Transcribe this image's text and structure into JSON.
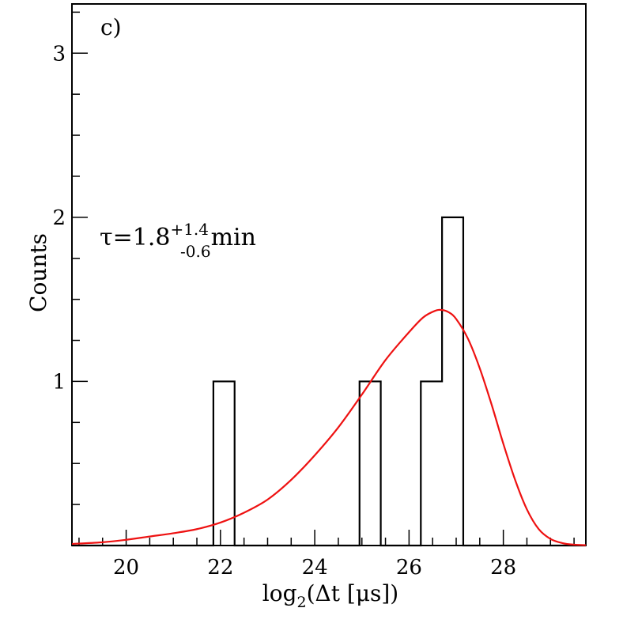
{
  "chart_data": {
    "type": "histogram",
    "panel_label": "c)",
    "xlabel": {
      "prefix": "log",
      "sub": "2",
      "suffix": "(Δt [μs])"
    },
    "ylabel": "Counts",
    "xlim": [
      18.85,
      29.75
    ],
    "ylim": [
      0,
      3.3
    ],
    "x_ticks": [
      20,
      22,
      24,
      26,
      28
    ],
    "y_ticks": [
      1,
      2,
      3
    ],
    "x_minor_step": 0.5,
    "y_minor_step": 0.25,
    "annotation": {
      "base": "τ=1.8",
      "sup": "+1.4",
      "sub": "-0.6",
      "unit": "min"
    },
    "colors": {
      "histogram": "#000000",
      "fit": "#ee1111"
    },
    "bins": [
      {
        "x0": 21.85,
        "x1": 22.3,
        "count": 1
      },
      {
        "x0": 24.95,
        "x1": 25.4,
        "count": 1
      },
      {
        "x0": 26.25,
        "x1": 26.7,
        "count": 1
      },
      {
        "x0": 26.7,
        "x1": 27.15,
        "count": 2
      }
    ],
    "fit_curve": {
      "name": "fit",
      "x": [
        18.85,
        19.5,
        20.0,
        20.5,
        21.0,
        21.5,
        22.0,
        22.5,
        23.0,
        23.5,
        24.0,
        24.5,
        25.0,
        25.5,
        26.0,
        26.3,
        26.55,
        26.7,
        26.85,
        27.0,
        27.25,
        27.5,
        27.75,
        28.0,
        28.25,
        28.5,
        28.75,
        29.0,
        29.25,
        29.5,
        29.75
      ],
      "y": [
        0.01,
        0.02,
        0.035,
        0.055,
        0.075,
        0.1,
        0.14,
        0.2,
        0.28,
        0.4,
        0.55,
        0.72,
        0.92,
        1.13,
        1.3,
        1.39,
        1.43,
        1.435,
        1.42,
        1.38,
        1.26,
        1.08,
        0.86,
        0.62,
        0.4,
        0.22,
        0.1,
        0.04,
        0.015,
        0.005,
        0.002
      ]
    }
  }
}
